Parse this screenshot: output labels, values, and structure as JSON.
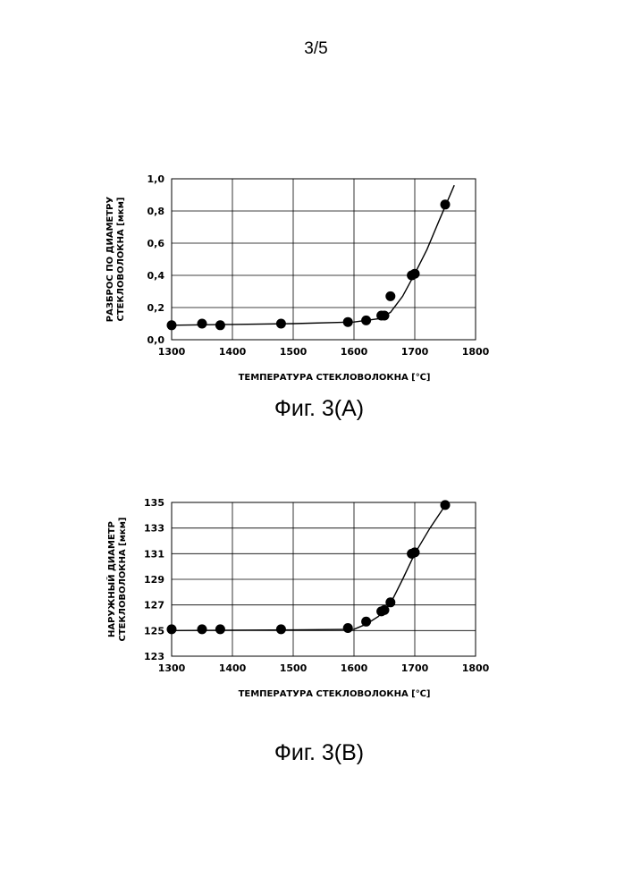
{
  "page": {
    "number": "3/5"
  },
  "chart_data": [
    {
      "type": "scatter",
      "figure_caption": "Фиг. 3(А)",
      "xlabel": "ТЕМПЕРАТУРА СТЕКЛОВОЛОКНА [℃]",
      "ylabel_lines": [
        "РАЗБРОС ПО ДИАМЕТРУ",
        "СТЕКЛОВОЛОКНА [мкм]"
      ],
      "xlim": [
        1300,
        1800
      ],
      "ylim": [
        0,
        1.0
      ],
      "x_ticks": [
        1300,
        1400,
        1500,
        1600,
        1700,
        1800
      ],
      "y_ticks": [
        0,
        0.2,
        0.4,
        0.6,
        0.8,
        1.0
      ],
      "x_tick_labels": [
        "1300",
        "1400",
        "1500",
        "1600",
        "1700",
        "1800"
      ],
      "y_tick_labels": [
        "0,0",
        "0,2",
        "0,4",
        "0,6",
        "0,8",
        "1,0"
      ],
      "grid": true,
      "series": [
        {
          "points": [
            {
              "x": 1300,
              "y": 0.09
            },
            {
              "x": 1350,
              "y": 0.1
            },
            {
              "x": 1380,
              "y": 0.09
            },
            {
              "x": 1480,
              "y": 0.1
            },
            {
              "x": 1590,
              "y": 0.11
            },
            {
              "x": 1620,
              "y": 0.12
            },
            {
              "x": 1645,
              "y": 0.15
            },
            {
              "x": 1650,
              "y": 0.15
            },
            {
              "x": 1660,
              "y": 0.27
            },
            {
              "x": 1695,
              "y": 0.4
            },
            {
              "x": 1700,
              "y": 0.41
            },
            {
              "x": 1750,
              "y": 0.84
            }
          ],
          "fit_curve": [
            {
              "x": 1300,
              "y": 0.09
            },
            {
              "x": 1400,
              "y": 0.095
            },
            {
              "x": 1500,
              "y": 0.1
            },
            {
              "x": 1600,
              "y": 0.11
            },
            {
              "x": 1640,
              "y": 0.13
            },
            {
              "x": 1660,
              "y": 0.17
            },
            {
              "x": 1680,
              "y": 0.27
            },
            {
              "x": 1700,
              "y": 0.41
            },
            {
              "x": 1720,
              "y": 0.56
            },
            {
              "x": 1740,
              "y": 0.74
            },
            {
              "x": 1765,
              "y": 0.96
            }
          ]
        }
      ]
    },
    {
      "type": "scatter",
      "figure_caption": "Фиг. 3(B)",
      "xlabel": "ТЕМПЕРАТУРА СТЕКЛОВОЛОКНА [℃]",
      "ylabel_lines": [
        "НАРУЖНЫЙ ДИАМЕТР",
        "СТЕКЛОВОЛОКНА [мкм]"
      ],
      "xlim": [
        1300,
        1800
      ],
      "ylim": [
        123,
        135
      ],
      "x_ticks": [
        1300,
        1400,
        1500,
        1600,
        1700,
        1800
      ],
      "y_ticks": [
        123,
        125,
        127,
        129,
        131,
        133,
        135
      ],
      "x_tick_labels": [
        "1300",
        "1400",
        "1500",
        "1600",
        "1700",
        "1800"
      ],
      "y_tick_labels": [
        "123",
        "125",
        "127",
        "129",
        "131",
        "133",
        "135"
      ],
      "grid": true,
      "series": [
        {
          "points": [
            {
              "x": 1300,
              "y": 125.1
            },
            {
              "x": 1350,
              "y": 125.1
            },
            {
              "x": 1380,
              "y": 125.1
            },
            {
              "x": 1480,
              "y": 125.1
            },
            {
              "x": 1590,
              "y": 125.2
            },
            {
              "x": 1620,
              "y": 125.7
            },
            {
              "x": 1645,
              "y": 126.5
            },
            {
              "x": 1650,
              "y": 126.6
            },
            {
              "x": 1660,
              "y": 127.2
            },
            {
              "x": 1695,
              "y": 131.0
            },
            {
              "x": 1700,
              "y": 131.1
            },
            {
              "x": 1750,
              "y": 134.8
            }
          ],
          "fit_curve": [
            {
              "x": 1300,
              "y": 125.0
            },
            {
              "x": 1500,
              "y": 125.05
            },
            {
              "x": 1600,
              "y": 125.1
            },
            {
              "x": 1620,
              "y": 125.5
            },
            {
              "x": 1640,
              "y": 126.1
            },
            {
              "x": 1660,
              "y": 127.1
            },
            {
              "x": 1680,
              "y": 129.0
            },
            {
              "x": 1700,
              "y": 131.0
            },
            {
              "x": 1725,
              "y": 133.0
            },
            {
              "x": 1752,
              "y": 134.9
            }
          ]
        }
      ]
    }
  ]
}
